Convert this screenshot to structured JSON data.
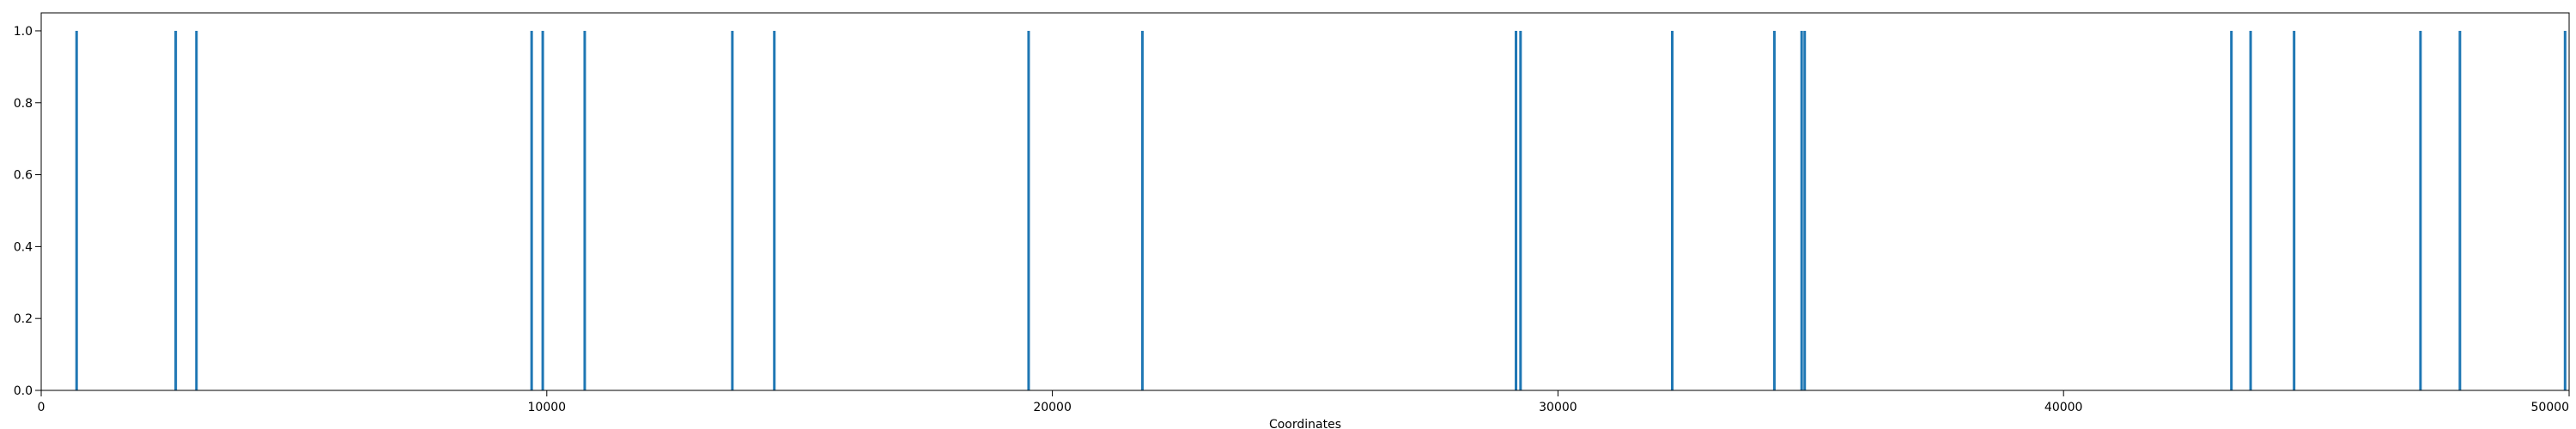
{
  "chart_data": {
    "type": "bar",
    "title": "",
    "xlabel": "Coordinates",
    "ylabel": "",
    "xlim": [
      0,
      50000
    ],
    "ylim": [
      0,
      1.05
    ],
    "grid": false,
    "bar_color": "#1f77b4",
    "x_ticks": [
      {
        "value": 0,
        "label": "0"
      },
      {
        "value": 10000,
        "label": "10000"
      },
      {
        "value": 20000,
        "label": "20000"
      },
      {
        "value": 30000,
        "label": "30000"
      },
      {
        "value": 40000,
        "label": "40000"
      },
      {
        "value": 50000,
        "label": "50000"
      }
    ],
    "y_ticks": [
      {
        "value": 0.0,
        "label": "0.0"
      },
      {
        "value": 0.2,
        "label": "0.2"
      },
      {
        "value": 0.4,
        "label": "0.4"
      },
      {
        "value": 0.6,
        "label": "0.6"
      },
      {
        "value": 0.8,
        "label": "0.8"
      },
      {
        "value": 1.0,
        "label": "1.0"
      }
    ],
    "x": [
      700,
      2660,
      3070,
      9700,
      9920,
      10750,
      13670,
      14500,
      19530,
      21780,
      29170,
      29260,
      32260,
      34280,
      34820,
      34880,
      43320,
      43700,
      44560,
      47060,
      47840,
      49920
    ],
    "values": [
      1,
      1,
      1,
      1,
      1,
      1,
      1,
      1,
      1,
      1,
      1,
      1,
      1,
      1,
      1,
      1,
      1,
      1,
      1,
      1,
      1,
      1
    ]
  }
}
